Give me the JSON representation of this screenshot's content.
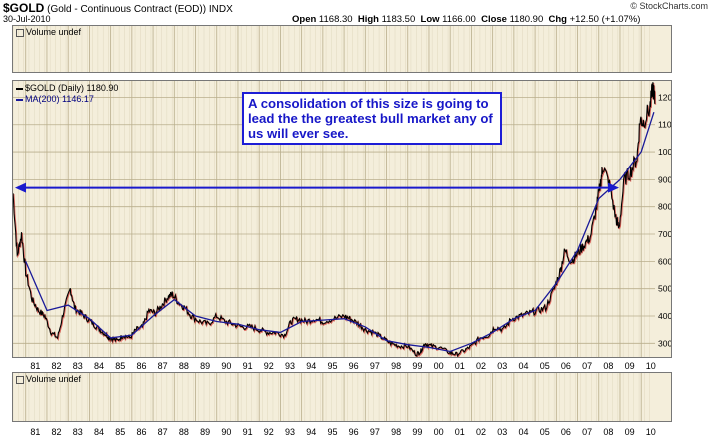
{
  "header": {
    "symbol": "$GOLD",
    "description": "(Gold - Continuous Contract (EOD))",
    "exchange": "INDX",
    "date": "30-Jul-2010",
    "watermark": "© StockCharts.com"
  },
  "quote": {
    "open_label": "Open",
    "open": "1168.30",
    "high_label": "High",
    "high": "1183.50",
    "low_label": "Low",
    "low": "1166.00",
    "close_label": "Close",
    "close": "1180.90",
    "chg_label": "Chg",
    "chg": "+12.50 (+1.07%)"
  },
  "top_panel": {
    "title": "Volume undef"
  },
  "bottom_panel": {
    "title": "Volume undef"
  },
  "legend": {
    "price": "$GOLD (Daily) 1180.90",
    "ma": "MA(200) 1146.17"
  },
  "annotation": {
    "text": "A consolidation of this size is going to lead the the greatest bull market any of us will ever see."
  },
  "colors": {
    "panel_bg": "#f4eedb",
    "price": "#000000",
    "price_down": "#cc0000",
    "ma": "#1a1a99",
    "arrow": "#1a1acc",
    "grid": "#cfc6a8"
  },
  "chart_data": {
    "type": "line",
    "title": "$GOLD (Daily) 1180.90",
    "xlabel": "",
    "ylabel": "",
    "x_ticks": [
      "81",
      "82",
      "83",
      "84",
      "85",
      "86",
      "87",
      "88",
      "89",
      "90",
      "91",
      "92",
      "93",
      "94",
      "95",
      "96",
      "97",
      "98",
      "99",
      "00",
      "01",
      "02",
      "03",
      "04",
      "05",
      "06",
      "07",
      "08",
      "09",
      "10"
    ],
    "y_ticks": [
      300,
      400,
      500,
      600,
      700,
      800,
      900,
      1000,
      1100,
      1200
    ],
    "ylim": [
      250,
      1260
    ],
    "xlim": [
      1980.4,
      2010.65
    ],
    "grid": true,
    "series": [
      {
        "name": "$GOLD (Daily)",
        "x": [
          1980.4,
          1980.6,
          1980.8,
          1981.0,
          1981.3,
          1981.6,
          1981.9,
          1982.2,
          1982.5,
          1982.8,
          1983.1,
          1983.3,
          1983.6,
          1983.9,
          1984.2,
          1984.5,
          1984.8,
          1985.0,
          1985.3,
          1985.6,
          1985.9,
          1986.2,
          1986.5,
          1986.8,
          1987.1,
          1987.4,
          1987.7,
          1987.9,
          1988.2,
          1988.5,
          1988.8,
          1989.2,
          1989.6,
          1990.0,
          1990.4,
          1990.8,
          1991.2,
          1991.6,
          1992.0,
          1992.4,
          1992.8,
          1993.2,
          1993.5,
          1993.8,
          1994.2,
          1994.6,
          1995.0,
          1995.5,
          1996.0,
          1996.3,
          1996.7,
          1997.0,
          1997.4,
          1997.8,
          1998.2,
          1998.6,
          1999.0,
          1999.4,
          1999.6,
          1999.8,
          2000.1,
          2000.5,
          2001.0,
          2001.3,
          2001.7,
          2002.0,
          2002.4,
          2002.8,
          2003.1,
          2003.5,
          2003.9,
          2004.3,
          2004.7,
          2005.1,
          2005.5,
          2005.9,
          2006.2,
          2006.4,
          2006.7,
          2007.0,
          2007.3,
          2007.6,
          2007.9,
          2008.1,
          2008.2,
          2008.5,
          2008.8,
          2008.95,
          2009.2,
          2009.5,
          2009.8,
          2009.95,
          2010.1,
          2010.4,
          2010.55,
          2010.65
        ],
        "values": [
          850,
          620,
          700,
          560,
          460,
          420,
          400,
          340,
          320,
          420,
          500,
          430,
          410,
          390,
          370,
          350,
          330,
          320,
          310,
          330,
          320,
          350,
          360,
          420,
          410,
          440,
          470,
          480,
          450,
          430,
          400,
          380,
          370,
          400,
          380,
          370,
          360,
          360,
          350,
          340,
          340,
          330,
          380,
          390,
          380,
          390,
          380,
          390,
          400,
          390,
          370,
          350,
          340,
          320,
          300,
          290,
          290,
          260,
          270,
          300,
          290,
          285,
          265,
          260,
          275,
          290,
          320,
          330,
          360,
          350,
          390,
          400,
          410,
          420,
          430,
          500,
          570,
          640,
          600,
          630,
          660,
          690,
          800,
          900,
          950,
          880,
          760,
          720,
          900,
          930,
          980,
          1120,
          1110,
          1160,
          1240,
          1180
        ]
      },
      {
        "name": "MA(200)",
        "x": [
          1981.0,
          1982.0,
          1983.0,
          1984.0,
          1985.0,
          1986.0,
          1987.0,
          1988.0,
          1989.0,
          1990.0,
          1991.0,
          1992.0,
          1993.0,
          1994.0,
          1995.0,
          1996.0,
          1997.0,
          1998.0,
          1999.0,
          2000.0,
          2001.0,
          2002.0,
          2003.0,
          2004.0,
          2005.0,
          2006.0,
          2007.0,
          2008.0,
          2009.0,
          2010.0,
          2010.6
        ],
        "values": [
          600,
          420,
          440,
          390,
          320,
          330,
          400,
          460,
          400,
          380,
          370,
          350,
          340,
          380,
          385,
          390,
          360,
          310,
          295,
          285,
          270,
          300,
          340,
          390,
          420,
          520,
          640,
          830,
          900,
          1000,
          1146
        ]
      }
    ],
    "annotations": [
      "A consolidation of this size is going to lead the the greatest bull market any of us will ever see."
    ],
    "legend": "top-left"
  }
}
